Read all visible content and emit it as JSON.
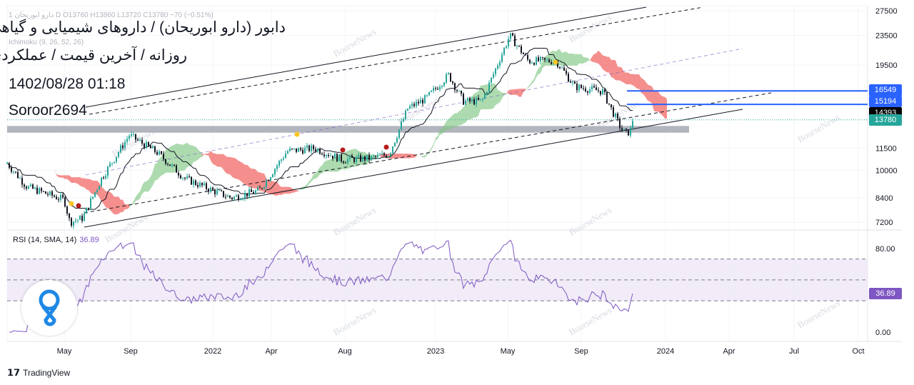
{
  "header": {
    "legend_line": "1 دارو ابوریحان D  O13760  H13860  L13720  C13780  −70 (−0.51%)",
    "indicator_line": "Ichimoku (9, 26, 52, 26)",
    "title_line1": "دابور (دارو ابوریحان) / داروهای شیمیایی و گیاهی",
    "title_line2": "روزانه / آخرین قیمت / عملکردی",
    "datetime": "1402/08/28 01:18",
    "author": "Soroor2694"
  },
  "watermark": "BourseNews",
  "rsi": {
    "label": "RSI (14, SMA, 14)",
    "value": "36.89"
  },
  "footer": {
    "brand": "TradingView"
  },
  "colors": {
    "up": "#26a69a",
    "down": "#131722",
    "cloud_up": "#81c784",
    "cloud_down": "#ef5350",
    "rsi": "#7e57c2",
    "blue": "#2962ff",
    "channel": "#131722",
    "band": "#b2b5be"
  },
  "price_tags": [
    {
      "value": "16549",
      "color": "#2962ff"
    },
    {
      "value": "15194",
      "color": "#2962ff"
    },
    {
      "value": "14393",
      "color": "#000000"
    },
    {
      "value": "13780",
      "color": "#26a69a"
    }
  ],
  "chart_data": {
    "type": "candlestick",
    "price_axis": {
      "scale": "log",
      "ticks": [
        "27500",
        "23500",
        "19500",
        "11500",
        "10000",
        "8400",
        "7200"
      ]
    },
    "rsi_axis": {
      "ticks": [
        "80.00",
        "0.00"
      ],
      "band": [
        30,
        70
      ],
      "mid": 50
    },
    "time_axis": [
      "May",
      "Sep",
      "2022",
      "Apr",
      "Aug",
      "2023",
      "May",
      "Sep",
      "2024",
      "Apr",
      "Jul",
      "Oct"
    ],
    "price_path_month_price": [
      [
        0.9,
        10500
      ],
      [
        2,
        9000
      ],
      [
        4,
        8300
      ],
      [
        4.3,
        7200
      ],
      [
        5,
        7400
      ],
      [
        6,
        9500
      ],
      [
        7.5,
        12500
      ],
      [
        9,
        11200
      ],
      [
        10.5,
        9500
      ],
      [
        12,
        8800
      ],
      [
        13,
        8400
      ],
      [
        14.5,
        8800
      ],
      [
        16,
        11300
      ],
      [
        17.5,
        11500
      ],
      [
        19,
        10700
      ],
      [
        20.5,
        10800
      ],
      [
        21.5,
        11100
      ],
      [
        22.5,
        14800
      ],
      [
        23.5,
        15800
      ],
      [
        24.7,
        18300
      ],
      [
        25.5,
        15500
      ],
      [
        26.5,
        15500
      ],
      [
        27.5,
        20500
      ],
      [
        28,
        23500
      ],
      [
        29,
        20000
      ],
      [
        30.5,
        20000
      ],
      [
        31.5,
        17000
      ],
      [
        33,
        16500
      ],
      [
        34,
        13000
      ],
      [
        34.3,
        12600
      ],
      [
        35,
        13780
      ]
    ],
    "horizontal_levels": [
      16549,
      15194
    ],
    "support_zone": [
      12700,
      13250
    ],
    "last_close": 13780
  }
}
